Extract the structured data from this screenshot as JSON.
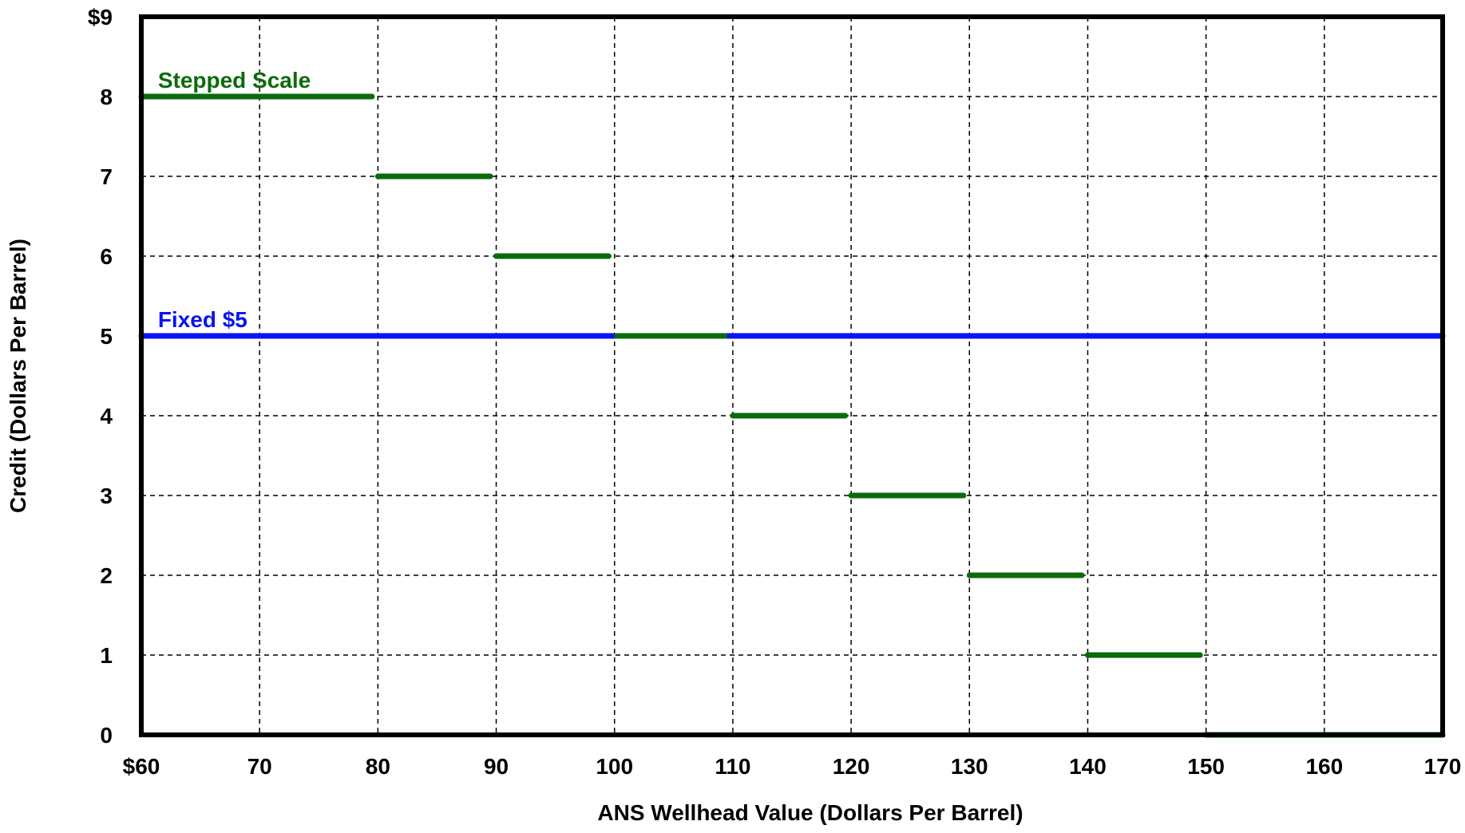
{
  "chart_data": {
    "type": "line",
    "title": "",
    "xlabel": "ANS Wellhead Value (Dollars Per Barrel)",
    "ylabel": "Credit (Dollars Per Barrel)",
    "xlim": [
      60,
      170
    ],
    "ylim": [
      0,
      9
    ],
    "x_ticks": [
      60,
      70,
      80,
      90,
      100,
      110,
      120,
      130,
      140,
      150,
      160,
      170
    ],
    "x_tick_labels": [
      "$60",
      "70",
      "80",
      "90",
      "100",
      "110",
      "120",
      "130",
      "140",
      "150",
      "160",
      "170"
    ],
    "y_ticks": [
      0,
      1,
      2,
      3,
      4,
      5,
      6,
      7,
      8,
      9
    ],
    "y_tick_labels": [
      "0",
      "1",
      "2",
      "3",
      "4",
      "5",
      "6",
      "7",
      "8",
      "$9"
    ],
    "grid": true,
    "grid_style": "dashed",
    "series": [
      {
        "name": "Stepped Scale",
        "color": "#0b6b0b",
        "segments": [
          {
            "x": [
              60,
              79.5
            ],
            "y": 8
          },
          {
            "x": [
              80,
              89.5
            ],
            "y": 7
          },
          {
            "x": [
              90,
              99.5
            ],
            "y": 6
          },
          {
            "x": [
              100,
              109.5
            ],
            "y": 5
          },
          {
            "x": [
              110,
              119.5
            ],
            "y": 4
          },
          {
            "x": [
              120,
              129.5
            ],
            "y": 3
          },
          {
            "x": [
              130,
              139.5
            ],
            "y": 2
          },
          {
            "x": [
              140,
              149.5
            ],
            "y": 1
          },
          {
            "x": [
              150,
              170
            ],
            "y": 0
          }
        ]
      },
      {
        "name": "Fixed $5",
        "color": "#0a14f0",
        "segments": [
          {
            "x": [
              60,
              170
            ],
            "y": 5
          }
        ]
      }
    ],
    "annotations": [
      {
        "text": "Stepped Scale",
        "color": "#0b6b0b",
        "x": 61,
        "y": 8.15
      },
      {
        "text": "Fixed $5",
        "color": "#0a14f0",
        "x": 61,
        "y": 5.15
      }
    ]
  }
}
